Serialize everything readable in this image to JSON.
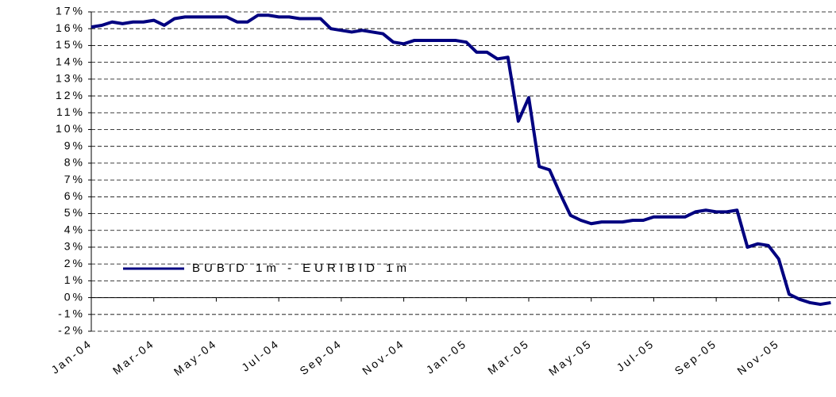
{
  "chart_data": {
    "type": "line",
    "categories": [
      "Jan-04",
      null,
      null,
      null,
      null,
      null,
      "Mar-04",
      null,
      null,
      null,
      null,
      null,
      "May-04",
      null,
      null,
      null,
      null,
      null,
      "Jul-04",
      null,
      null,
      null,
      null,
      null,
      "Sep-04",
      null,
      null,
      null,
      null,
      null,
      "Nov-04",
      null,
      null,
      null,
      null,
      null,
      "Jan-05",
      null,
      null,
      null,
      null,
      null,
      "Mar-05",
      null,
      null,
      null,
      null,
      null,
      "May-05",
      null,
      null,
      null,
      null,
      null,
      "Jul-05",
      null,
      null,
      null,
      null,
      null,
      "Sep-05",
      null,
      null,
      null,
      null,
      null,
      "Nov-05",
      null,
      null,
      null,
      null,
      null
    ],
    "series": [
      {
        "name": "BUBID 1m - EURIBID 1m",
        "color": "#000080",
        "values": [
          16.1,
          16.2,
          16.4,
          16.3,
          16.4,
          16.4,
          16.5,
          16.2,
          16.6,
          16.7,
          16.7,
          16.7,
          16.7,
          16.7,
          16.4,
          16.4,
          16.8,
          16.8,
          16.7,
          16.7,
          16.6,
          16.6,
          16.6,
          16.0,
          15.9,
          15.8,
          15.9,
          15.8,
          15.7,
          15.2,
          15.1,
          15.3,
          15.3,
          15.3,
          15.3,
          15.3,
          15.2,
          14.6,
          14.6,
          14.2,
          14.3,
          10.5,
          11.9,
          7.8,
          7.6,
          6.2,
          4.9,
          4.6,
          4.4,
          4.5,
          4.5,
          4.5,
          4.6,
          4.6,
          4.8,
          4.8,
          4.8,
          4.8,
          5.1,
          5.2,
          5.1,
          5.1,
          5.2,
          3.0,
          3.2,
          3.1,
          2.3,
          0.2,
          -0.1,
          -0.3,
          -0.4,
          -0.3
        ]
      }
    ],
    "ylim": [
      -2,
      17
    ],
    "yticks": [
      {
        "value": -2,
        "label": "-2%"
      },
      {
        "value": -1,
        "label": "-1%"
      },
      {
        "value": 0,
        "label": "0%"
      },
      {
        "value": 1,
        "label": "1%"
      },
      {
        "value": 2,
        "label": "2%"
      },
      {
        "value": 3,
        "label": "3%"
      },
      {
        "value": 4,
        "label": "4%"
      },
      {
        "value": 5,
        "label": "5%"
      },
      {
        "value": 6,
        "label": "6%"
      },
      {
        "value": 7,
        "label": "7%"
      },
      {
        "value": 8,
        "label": "8%"
      },
      {
        "value": 9,
        "label": "9%"
      },
      {
        "value": 10,
        "label": "10%"
      },
      {
        "value": 11,
        "label": "11%"
      },
      {
        "value": 12,
        "label": "12%"
      },
      {
        "value": 13,
        "label": "13%"
      },
      {
        "value": 14,
        "label": "14%"
      },
      {
        "value": 15,
        "label": "15%"
      },
      {
        "value": 16,
        "label": "16%"
      },
      {
        "value": 17,
        "label": "17%"
      }
    ],
    "grid": true,
    "legend": "lower-left"
  }
}
